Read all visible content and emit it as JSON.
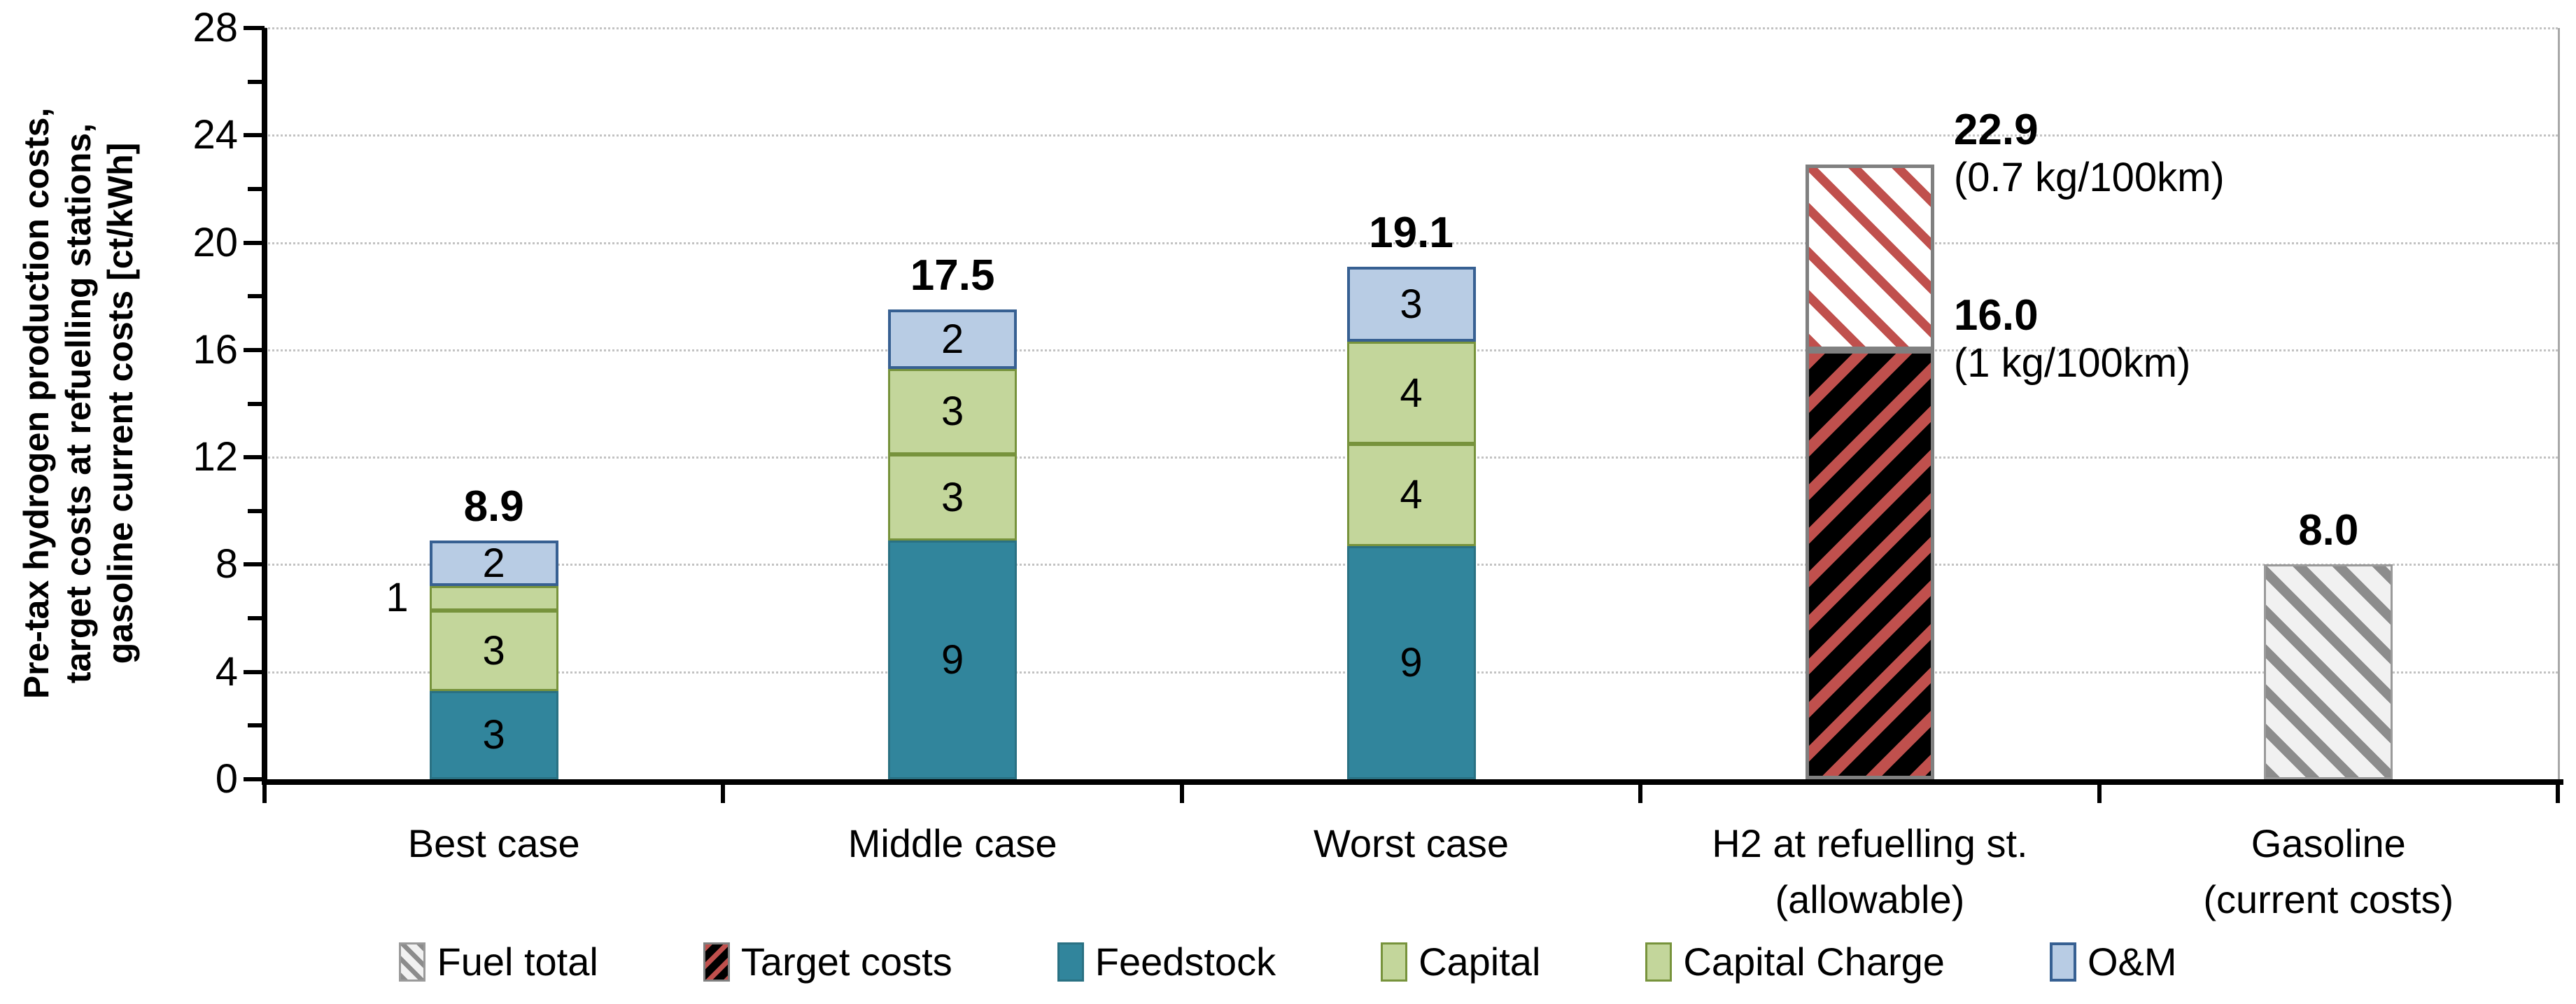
{
  "y_axis": {
    "title_lines": [
      "Pre-tax hydrogen production costs,",
      "target costs at refuelling stations,",
      "gasoline current costs [ct/kWh]"
    ],
    "tick_labels": [
      "0",
      "4",
      "8",
      "12",
      "16",
      "20",
      "24",
      "28"
    ],
    "max": 28,
    "major_step": 4,
    "minor_step": 2
  },
  "colors": {
    "feedstock": "#31859C",
    "feedstock_border": "#2A7183",
    "capital_fill": "#C3D69B",
    "capital_border": "#77933C",
    "om_fill": "#B8CCE4",
    "om_border": "#376092",
    "stripe_red": "#C0504D",
    "stripe_gray": "#8C8C8C",
    "fuel_bg": "#F1F1F1",
    "target_bg": "#000000",
    "hatch_border": "#808080",
    "gasoline_border": "#9A9A9A",
    "axis": "#000000",
    "gridline": "#C2C2C2"
  },
  "chart_data": {
    "type": "bar",
    "stacked": true,
    "title": "",
    "xlabel": "",
    "ylabel": "Pre-tax hydrogen production costs, target costs at refuelling stations, gasoline current costs [ct/kWh]",
    "ylim": [
      0,
      28
    ],
    "grid": "horizontal dotted, every 4",
    "legend_position": "bottom",
    "categories": [
      "Best case",
      "Middle case",
      "Worst case",
      "H2 at refuelling st. (allowable)",
      "Gasoline (current costs)"
    ],
    "totals": [
      8.9,
      17.5,
      19.1,
      22.9,
      8.0
    ],
    "series": [
      {
        "name": "Feedstock",
        "values": [
          3.3,
          8.9,
          8.7,
          0,
          0
        ],
        "labels": [
          "3",
          "9",
          "9",
          "",
          ""
        ]
      },
      {
        "name": "Capital",
        "values": [
          3.0,
          3.2,
          3.8,
          0,
          0
        ],
        "labels": [
          "3",
          "3",
          "4",
          "",
          ""
        ]
      },
      {
        "name": "Capital Charge",
        "values": [
          0.9,
          3.2,
          3.8,
          0,
          0
        ],
        "labels": [
          "1",
          "3",
          "4",
          "",
          ""
        ]
      },
      {
        "name": "O&M",
        "values": [
          1.7,
          2.2,
          2.8,
          0,
          0
        ],
        "labels": [
          "2",
          "2",
          "3",
          "",
          ""
        ]
      },
      {
        "name": "Target costs",
        "values": [
          0,
          0,
          0,
          16.0,
          0
        ],
        "labels": [
          "",
          "",
          "",
          "",
          ""
        ]
      },
      {
        "name": "Fuel total",
        "values": [
          0,
          0,
          0,
          6.9,
          8.0
        ],
        "labels": [
          "",
          "",
          "",
          "",
          ""
        ]
      }
    ],
    "bars": [
      {
        "category_lines": [
          "Best case"
        ],
        "total": 8.9,
        "total_label": "8.9",
        "segments": [
          {
            "kind": "feedstock",
            "value": 3.3,
            "label": "3"
          },
          {
            "kind": "capital",
            "value": 3.0,
            "label": "3"
          },
          {
            "kind": "capital_charge",
            "value": 0.9,
            "label": "1",
            "label_outside": true
          },
          {
            "kind": "om",
            "value": 1.7,
            "label": "2"
          }
        ]
      },
      {
        "category_lines": [
          "Middle case"
        ],
        "total": 17.5,
        "total_label": "17.5",
        "segments": [
          {
            "kind": "feedstock",
            "value": 8.9,
            "label": "9"
          },
          {
            "kind": "capital",
            "value": 3.2,
            "label": "3"
          },
          {
            "kind": "capital_charge",
            "value": 3.2,
            "label": "3"
          },
          {
            "kind": "om",
            "value": 2.2,
            "label": "2"
          }
        ]
      },
      {
        "category_lines": [
          "Worst case"
        ],
        "total": 19.1,
        "total_label": "19.1",
        "segments": [
          {
            "kind": "feedstock",
            "value": 8.7,
            "label": "9"
          },
          {
            "kind": "capital",
            "value": 3.8,
            "label": "4"
          },
          {
            "kind": "capital_charge",
            "value": 3.8,
            "label": "4"
          },
          {
            "kind": "om",
            "value": 2.8,
            "label": "3"
          }
        ]
      },
      {
        "category_lines": [
          "H2 at refuelling st.",
          "(allowable)"
        ],
        "total": 22.9,
        "total_label": "",
        "segments": [
          {
            "kind": "target",
            "value": 16.0,
            "label": ""
          },
          {
            "kind": "fuel_red",
            "value": 6.9,
            "label": ""
          }
        ],
        "annotations": [
          {
            "value_label": "22.9",
            "note": "(0.7 kg/100km)",
            "at_value": 22.9
          },
          {
            "value_label": "16.0",
            "note": "(1 kg/100km)",
            "at_value": 16.0
          }
        ]
      },
      {
        "category_lines": [
          "Gasoline",
          "(current costs)"
        ],
        "total": 8.0,
        "total_label": "8.0",
        "segments": [
          {
            "kind": "fuel_gray",
            "value": 8.0,
            "label": ""
          }
        ]
      }
    ]
  },
  "legend": {
    "items": [
      {
        "label": "Fuel total",
        "kind": "fuel_gray"
      },
      {
        "label": "Target costs",
        "kind": "target"
      },
      {
        "label": "Feedstock",
        "kind": "feedstock"
      },
      {
        "label": "Capital",
        "kind": "capital"
      },
      {
        "label": "Capital Charge",
        "kind": "capital_charge"
      },
      {
        "label": "O&M",
        "kind": "om"
      }
    ]
  }
}
